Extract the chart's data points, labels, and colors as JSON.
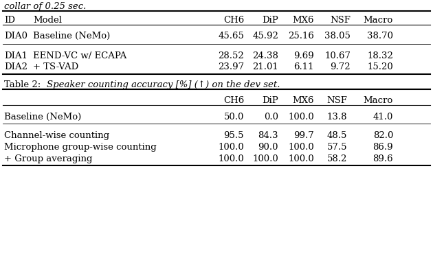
{
  "top_italic_text": "collar of 0.25 sec.",
  "table1_headers": [
    "ID",
    "Model",
    "CH6",
    "DiP",
    "MX6",
    "NSF",
    "Macro"
  ],
  "table1_rows": [
    [
      "DIA0",
      "Baseline (NeMo)",
      "45.65",
      "45.92",
      "25.16",
      "38.05",
      "38.70"
    ],
    [
      "DIA1",
      "EEND-VC w/ ECAPA",
      "28.52",
      "24.38",
      "9.69",
      "10.67",
      "18.32"
    ],
    [
      "DIA2",
      "+ TS-VAD",
      "23.97",
      "21.01",
      "6.11",
      "9.72",
      "15.20"
    ]
  ],
  "table2_headers": [
    "",
    "CH6",
    "DiP",
    "MX6",
    "NSF",
    "Macro"
  ],
  "table2_rows": [
    [
      "Baseline (NeMo)",
      "50.0",
      "0.0",
      "100.0",
      "13.8",
      "41.0"
    ],
    [
      "Channel-wise counting",
      "95.5",
      "84.3",
      "99.7",
      "48.5",
      "82.0"
    ],
    [
      "Microphone group-wise counting",
      "100.0",
      "90.0",
      "100.0",
      "57.5",
      "86.9"
    ],
    [
      "+ Group averaging",
      "100.0",
      "100.0",
      "100.0",
      "58.2",
      "89.6"
    ]
  ],
  "bg_color": "#ffffff",
  "text_color": "#000000",
  "font_size": 9.5
}
